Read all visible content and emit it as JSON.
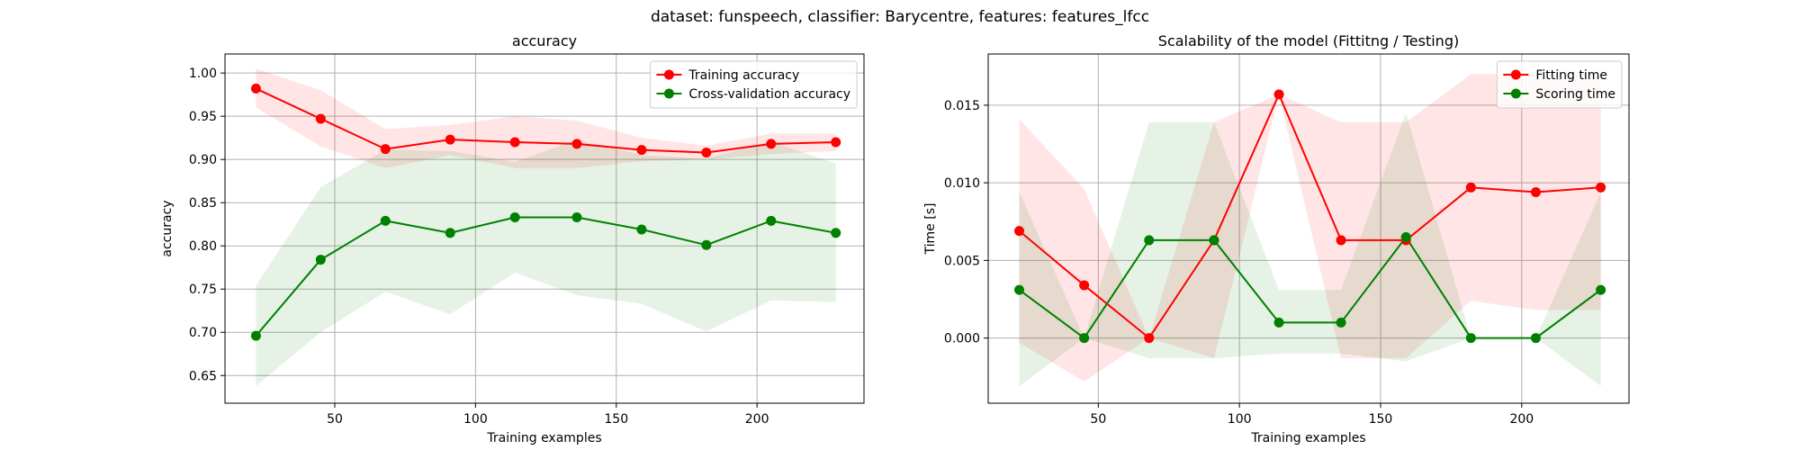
{
  "suptitle": "dataset: funspeech, classifier: Barycentre, features: features_lfcc",
  "chart_data": [
    {
      "type": "line",
      "title": "accuracy",
      "xlabel": "Training examples",
      "ylabel": "accuracy",
      "xlim": [
        11,
        238
      ],
      "ylim": [
        0.618,
        1.022
      ],
      "xticks": [
        50,
        100,
        150,
        200
      ],
      "yticks": [
        0.65,
        0.7,
        0.75,
        0.8,
        0.85,
        0.9,
        0.95,
        1.0
      ],
      "ytick_decimals": 2,
      "grid": true,
      "legend_position": "top-right",
      "x": [
        22,
        45,
        68,
        91,
        114,
        136,
        159,
        182,
        205,
        228
      ],
      "series": [
        {
          "name": "Training accuracy",
          "color": "#ff0000",
          "band_color": "#ff0000",
          "values": [
            0.982,
            0.947,
            0.912,
            0.923,
            0.92,
            0.918,
            0.911,
            0.908,
            0.918,
            0.92
          ],
          "band_upper": [
            1.005,
            0.98,
            0.935,
            0.94,
            0.95,
            0.945,
            0.925,
            0.916,
            0.93,
            0.93
          ],
          "band_lower": [
            0.96,
            0.915,
            0.89,
            0.905,
            0.89,
            0.89,
            0.898,
            0.9,
            0.906,
            0.91
          ]
        },
        {
          "name": "Cross-validation accuracy",
          "color": "#008000",
          "band_color": "#008000",
          "values": [
            0.696,
            0.784,
            0.829,
            0.815,
            0.833,
            0.833,
            0.819,
            0.801,
            0.829,
            0.815
          ],
          "band_upper": [
            0.754,
            0.868,
            0.911,
            0.91,
            0.897,
            0.923,
            0.905,
            0.901,
            0.921,
            0.895
          ],
          "band_lower": [
            0.638,
            0.7,
            0.747,
            0.721,
            0.769,
            0.743,
            0.733,
            0.701,
            0.737,
            0.735
          ]
        }
      ]
    },
    {
      "type": "line",
      "title": "Scalability of the model (Fittitng / Testing)",
      "xlabel": "Training examples",
      "ylabel": "Time [s]",
      "xlim": [
        11,
        238
      ],
      "ylim": [
        -0.0042,
        0.0183
      ],
      "xticks": [
        50,
        100,
        150,
        200
      ],
      "yticks": [
        0.0,
        0.005,
        0.01,
        0.015
      ],
      "ytick_decimals": 3,
      "grid": true,
      "legend_position": "top-right",
      "x": [
        22,
        45,
        68,
        91,
        114,
        136,
        159,
        182,
        205,
        228
      ],
      "series": [
        {
          "name": "Fitting time",
          "color": "#ff0000",
          "band_color": "#ff0000",
          "values": [
            0.0069,
            0.0034,
            0.0,
            0.0063,
            0.0157,
            0.0063,
            0.0063,
            0.0097,
            0.0094,
            0.0097
          ],
          "band_upper": [
            0.0141,
            0.0096,
            0.0,
            0.0139,
            0.0157,
            0.0139,
            0.0139,
            0.017,
            0.017,
            0.017
          ],
          "band_lower": [
            -0.0003,
            -0.0028,
            0.0,
            -0.0013,
            0.0157,
            -0.0013,
            -0.0013,
            0.0024,
            0.0018,
            0.0018
          ]
        },
        {
          "name": "Scoring time",
          "color": "#008000",
          "band_color": "#008000",
          "values": [
            0.0031,
            0.0,
            0.0063,
            0.0063,
            0.001,
            0.001,
            0.0065,
            0.0,
            0.0,
            0.0031
          ],
          "band_upper": [
            0.0094,
            0.0,
            0.0139,
            0.0139,
            0.0031,
            0.0031,
            0.0145,
            0.0,
            0.0,
            0.0094
          ],
          "band_lower": [
            -0.0031,
            0.0,
            -0.0013,
            -0.0013,
            -0.001,
            -0.001,
            -0.0015,
            0.0,
            0.0,
            -0.0031
          ]
        }
      ]
    }
  ]
}
